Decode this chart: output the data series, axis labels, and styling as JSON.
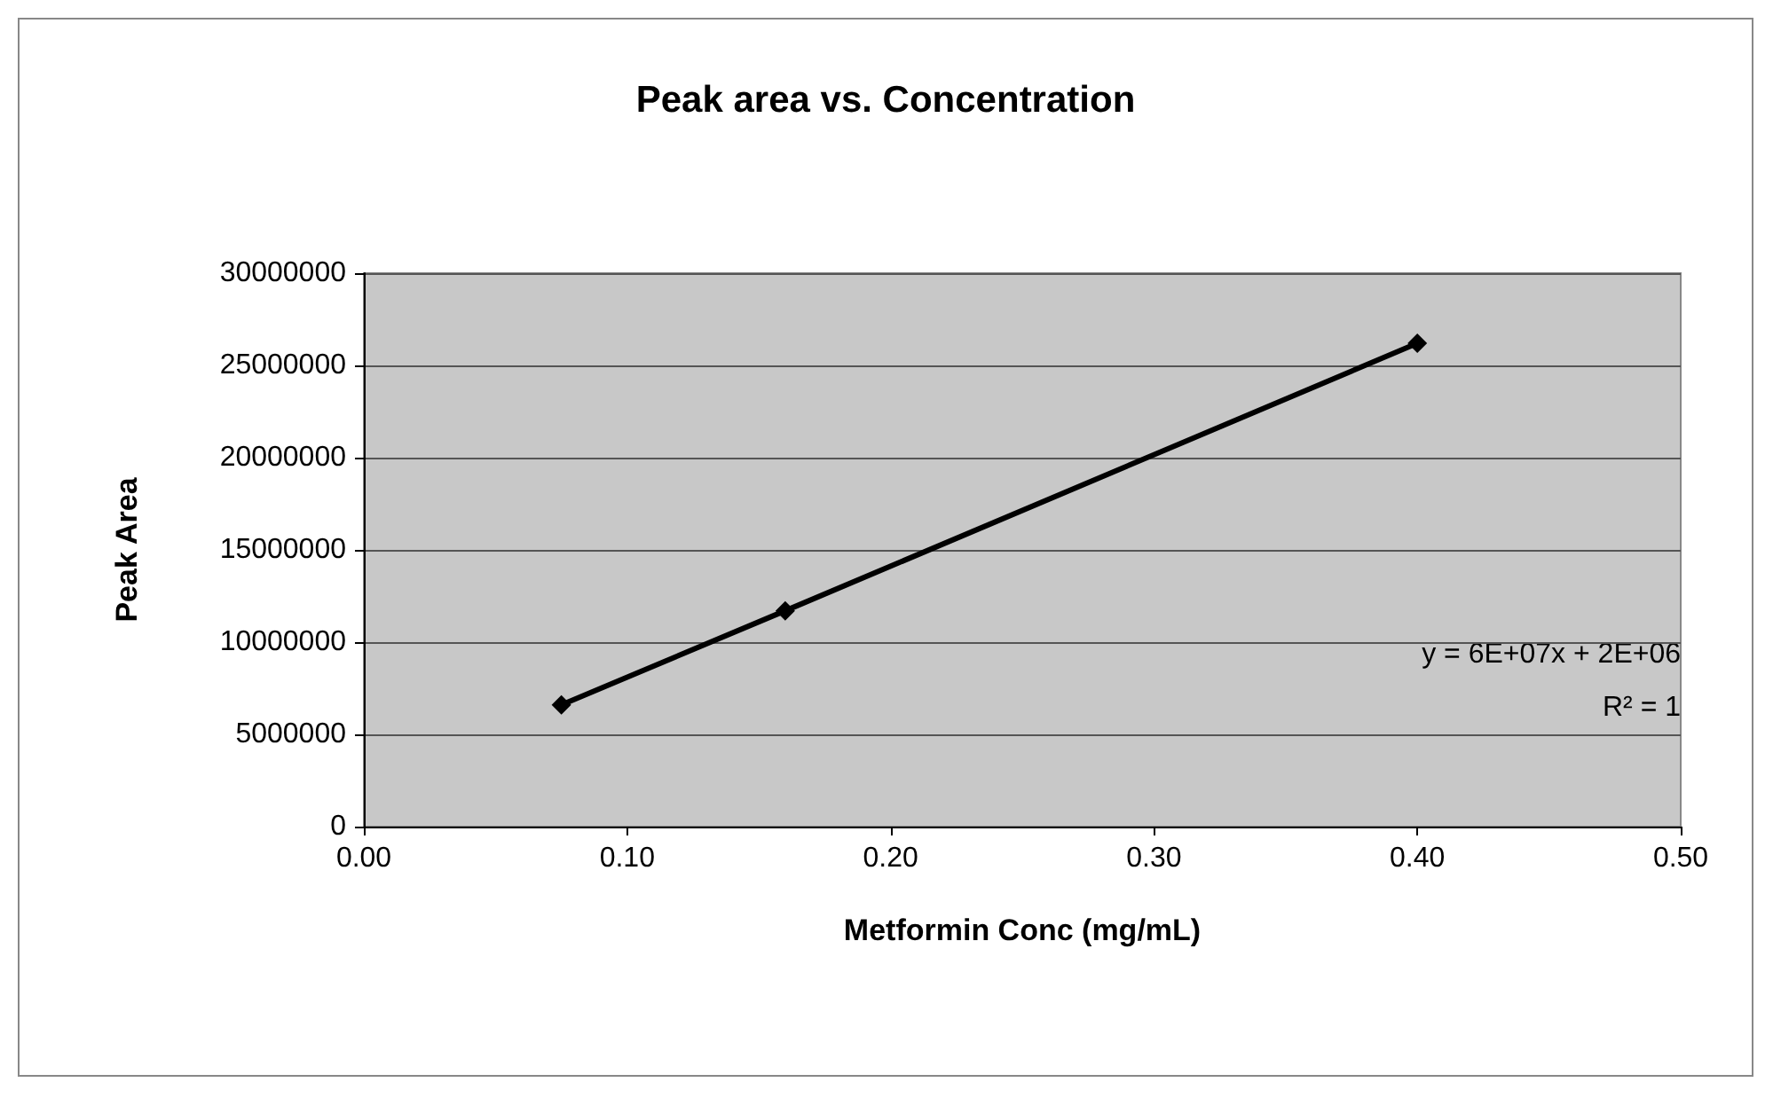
{
  "chart_data": {
    "type": "line",
    "title": "Peak area vs. Concentration",
    "xlabel": "Metformin Conc (mg/mL)",
    "ylabel": "Peak Area",
    "x": [
      0.075,
      0.16,
      0.4
    ],
    "series": [
      {
        "color": "#000000",
        "values": [
          6600000,
          11700000,
          26200000
        ]
      }
    ],
    "xlim": [
      0,
      0.5
    ],
    "xticks": [
      {
        "value": 0,
        "label": "0.00"
      },
      {
        "value": 0.1,
        "label": "0.10"
      },
      {
        "value": 0.2,
        "label": "0.20"
      },
      {
        "value": 0.3,
        "label": "0.30"
      },
      {
        "value": 0.4,
        "label": "0.40"
      },
      {
        "value": 0.5,
        "label": "0.50"
      }
    ],
    "ylim": [
      0,
      30000000
    ],
    "yticks": [
      0,
      5000000,
      10000000,
      15000000,
      20000000,
      25000000,
      30000000
    ],
    "grid": "y",
    "marker": "diamond",
    "line_style": "solid",
    "annotations": [
      "y = 6E+07x + 2E+06",
      "R² = 1"
    ]
  }
}
